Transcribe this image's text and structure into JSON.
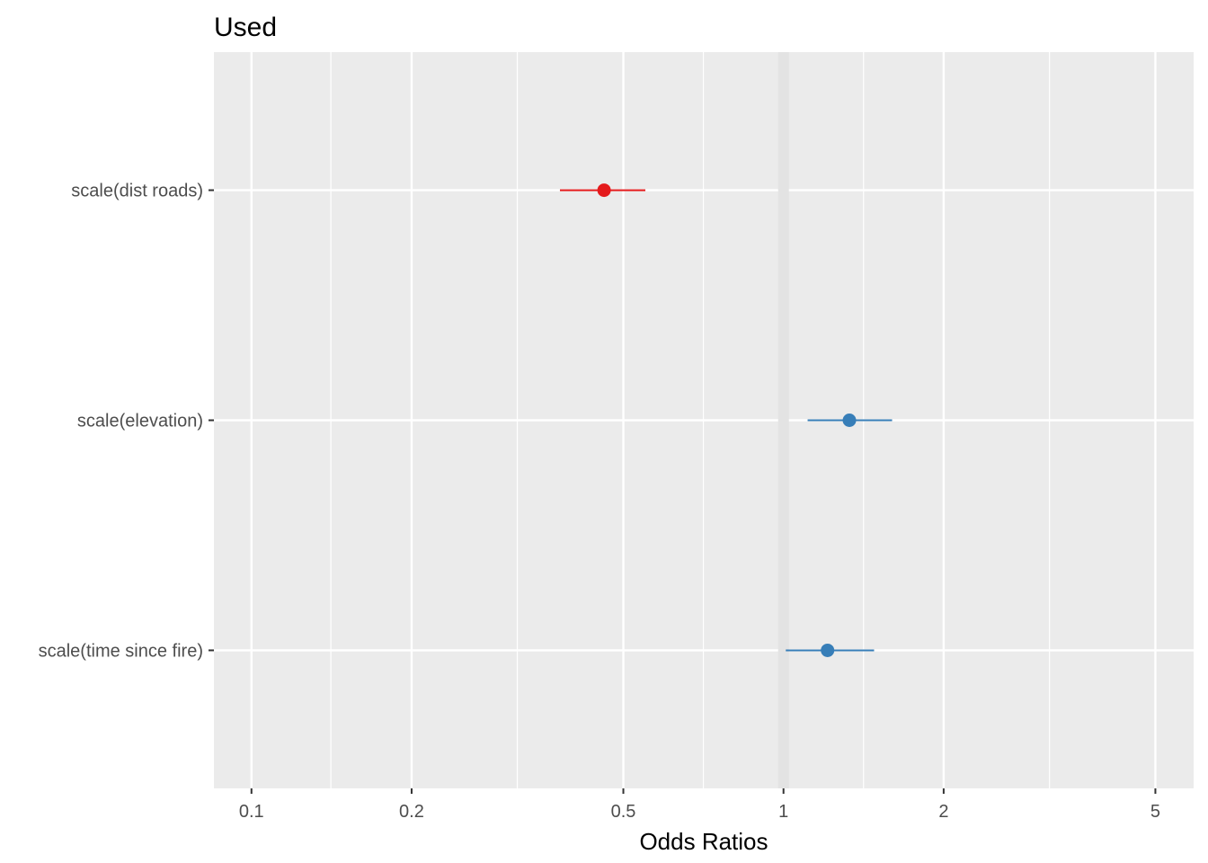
{
  "chart_data": {
    "type": "forest",
    "title": "Used",
    "xlabel": "Odds Ratios",
    "ylabel": "",
    "x_scale": "log",
    "xlim": [
      0.085,
      5.9
    ],
    "x_ticks": [
      0.1,
      0.2,
      0.5,
      1,
      2,
      5
    ],
    "x_tick_labels": [
      "0.1",
      "0.2",
      "0.5",
      "1",
      "2",
      "5"
    ],
    "x_minor_ticks": [
      0.141,
      0.316,
      0.707,
      1.414,
      3.162
    ],
    "reference_line": 1,
    "grid": true,
    "colors": {
      "positive": "#377eb8",
      "negative": "#e41a1c",
      "panel": "#ebebeb",
      "grid": "#ffffff",
      "reference": "#e3e3e3"
    },
    "terms": [
      {
        "label": "scale(dist roads)",
        "estimate": 0.46,
        "conf_low": 0.38,
        "conf_high": 0.55,
        "direction": "negative"
      },
      {
        "label": "scale(elevation)",
        "estimate": 1.33,
        "conf_low": 1.11,
        "conf_high": 1.6,
        "direction": "positive"
      },
      {
        "label": "scale(time since fire)",
        "estimate": 1.21,
        "conf_low": 1.01,
        "conf_high": 1.48,
        "direction": "positive"
      }
    ]
  }
}
